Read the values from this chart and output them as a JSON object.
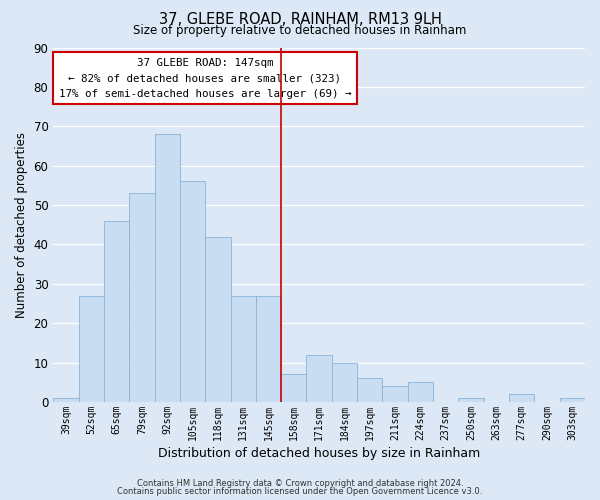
{
  "title": "37, GLEBE ROAD, RAINHAM, RM13 9LH",
  "subtitle": "Size of property relative to detached houses in Rainham",
  "xlabel": "Distribution of detached houses by size in Rainham",
  "ylabel": "Number of detached properties",
  "footer_line1": "Contains HM Land Registry data © Crown copyright and database right 2024.",
  "footer_line2": "Contains public sector information licensed under the Open Government Licence v3.0.",
  "categories": [
    "39sqm",
    "52sqm",
    "65sqm",
    "79sqm",
    "92sqm",
    "105sqm",
    "118sqm",
    "131sqm",
    "145sqm",
    "158sqm",
    "171sqm",
    "184sqm",
    "197sqm",
    "211sqm",
    "224sqm",
    "237sqm",
    "250sqm",
    "263sqm",
    "277sqm",
    "290sqm",
    "303sqm"
  ],
  "values": [
    1,
    27,
    46,
    53,
    68,
    56,
    42,
    27,
    27,
    7,
    12,
    10,
    6,
    4,
    5,
    0,
    1,
    0,
    2,
    0,
    1
  ],
  "bar_color": "#c9ddf2",
  "bar_edge_color": "#8ab4d8",
  "property_line_x": 8.5,
  "property_line_color": "#cc0000",
  "annotation_title": "37 GLEBE ROAD: 147sqm",
  "annotation_line1": "← 82% of detached houses are smaller (323)",
  "annotation_line2": "17% of semi-detached houses are larger (69) →",
  "annotation_box_edge": "#cc0000",
  "ylim": [
    0,
    90
  ],
  "yticks": [
    0,
    10,
    20,
    30,
    40,
    50,
    60,
    70,
    80,
    90
  ],
  "bg_color": "#dce8f5",
  "plot_bg_color": "#dce8f5",
  "grid_color": "#ffffff"
}
